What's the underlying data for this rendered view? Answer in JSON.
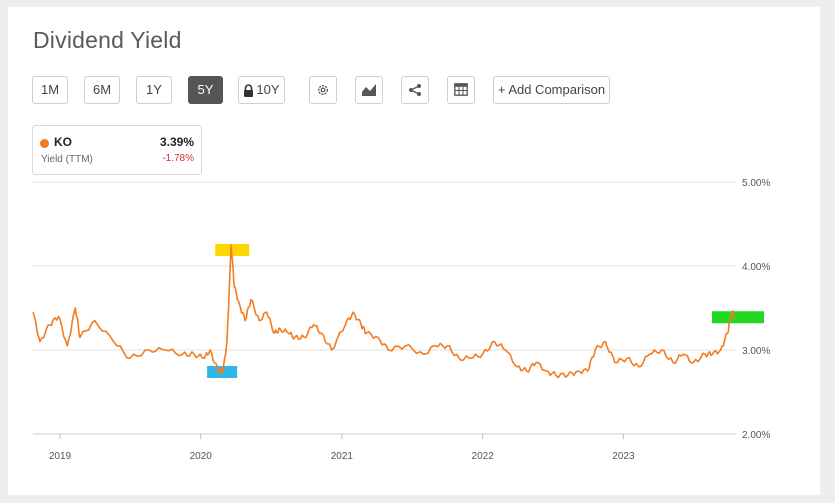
{
  "page": {
    "title": "Dividend Yield"
  },
  "toolbar": {
    "ranges": [
      "1M",
      "6M",
      "1Y",
      "5Y"
    ],
    "active_range": "5Y",
    "locked_range": "10Y",
    "add_comparison": "+ Add Comparison",
    "icons": [
      "lock-icon",
      "gear-icon",
      "chart-type-icon",
      "share-icon",
      "table-icon"
    ]
  },
  "legend": {
    "ticker": "KO",
    "metric": "Yield (TTM)",
    "value": "3.39%",
    "change": "-1.78%",
    "dot_color": "#f47b20",
    "change_color": "#d0342c"
  },
  "chart_data": {
    "type": "line",
    "series": [
      {
        "name": "KO",
        "color": "#f47b20",
        "x": [
          "2018-10-23",
          "2018-11-10",
          "2018-12-05",
          "2018-12-28",
          "2019-01-20",
          "2019-02-10",
          "2019-02-22",
          "2019-04-01",
          "2019-05-20",
          "2019-07-01",
          "2019-08-20",
          "2019-10-01",
          "2019-11-15",
          "2019-12-15",
          "2020-01-10",
          "2020-01-25",
          "2020-02-15",
          "2020-02-28",
          "2020-03-09",
          "2020-03-20",
          "2020-03-28",
          "2020-04-10",
          "2020-04-25",
          "2020-05-10",
          "2020-06-01",
          "2020-06-20",
          "2020-07-10",
          "2020-07-25",
          "2020-08-15",
          "2020-09-01",
          "2020-09-25",
          "2020-10-20",
          "2020-11-09",
          "2020-12-05",
          "2021-01-10",
          "2021-01-30",
          "2021-02-20",
          "2021-03-05",
          "2021-04-05",
          "2021-05-01",
          "2021-06-15",
          "2021-08-01",
          "2021-09-01",
          "2021-10-01",
          "2021-11-01",
          "2021-12-01",
          "2022-01-01",
          "2022-02-01",
          "2022-03-01",
          "2022-04-01",
          "2022-04-25",
          "2022-05-20",
          "2022-06-15",
          "2022-07-10",
          "2022-08-10",
          "2022-09-05",
          "2022-09-30",
          "2022-10-20",
          "2022-11-15",
          "2022-12-10",
          "2023-01-10",
          "2023-02-10",
          "2023-03-10",
          "2023-04-10",
          "2023-05-10",
          "2023-06-05",
          "2023-07-01",
          "2023-08-01",
          "2023-08-20",
          "2023-09-10",
          "2023-09-28",
          "2023-10-09",
          "2023-10-20"
        ],
        "y": [
          3.45,
          3.1,
          3.3,
          3.4,
          3.05,
          3.5,
          3.15,
          3.35,
          3.1,
          2.9,
          3.0,
          3.0,
          2.95,
          2.95,
          2.9,
          3.0,
          2.75,
          2.75,
          3.1,
          4.25,
          3.75,
          3.55,
          3.35,
          3.6,
          3.35,
          3.45,
          3.2,
          3.25,
          3.2,
          3.15,
          3.15,
          3.3,
          3.2,
          3.0,
          3.3,
          3.45,
          3.3,
          3.2,
          3.15,
          3.0,
          3.05,
          2.95,
          3.05,
          3.05,
          2.9,
          2.9,
          2.95,
          3.1,
          3.0,
          2.8,
          2.75,
          2.85,
          2.75,
          2.7,
          2.7,
          2.75,
          2.75,
          3.0,
          3.1,
          2.85,
          2.9,
          2.8,
          2.95,
          3.0,
          2.85,
          2.95,
          2.85,
          2.95,
          2.95,
          3.0,
          3.2,
          3.45,
          3.39
        ]
      }
    ],
    "x_ticks": [
      "2019",
      "2020",
      "2021",
      "2022",
      "2023"
    ],
    "y_ticks": [
      "5.00%",
      "4.00%",
      "3.00%",
      "2.00%"
    ],
    "y_range": [
      2.0,
      5.0
    ],
    "x_range": [
      "2018-10-23",
      "2023-10-20"
    ],
    "grid": "horizontal",
    "highlights": [
      {
        "label": "peak",
        "color": "#ffd700"
      },
      {
        "label": "low",
        "color": "#2db8e8"
      },
      {
        "label": "latest",
        "color": "#22d822"
      }
    ]
  }
}
